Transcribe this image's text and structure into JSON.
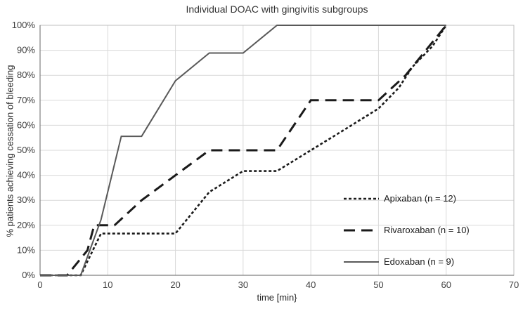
{
  "chart_data": {
    "type": "line",
    "title": "Individual DOAC with gingivitis subgroups",
    "xlabel": "time [min}",
    "ylabel": "% patients achieving cessation of bleeding",
    "xlim": [
      0,
      70
    ],
    "ylim": [
      0,
      100
    ],
    "xticks": [
      0,
      10,
      20,
      30,
      40,
      50,
      60,
      70
    ],
    "ytick_labels": [
      "0%",
      "10%",
      "20%",
      "30%",
      "40%",
      "50%",
      "60%",
      "70%",
      "80%",
      "90%",
      "100%"
    ],
    "grid": true,
    "legend_position": "inside-bottom-right",
    "series": [
      {
        "name": "Apixaban (n = 12)",
        "style": "dotted",
        "color": "#1a1a1a",
        "points": [
          [
            0,
            0
          ],
          [
            6,
            0
          ],
          [
            9,
            16.7
          ],
          [
            20,
            16.7
          ],
          [
            25,
            33.3
          ],
          [
            30,
            41.7
          ],
          [
            35,
            41.7
          ],
          [
            40,
            50
          ],
          [
            45,
            58.3
          ],
          [
            50,
            66.7
          ],
          [
            53,
            75
          ],
          [
            55,
            83.3
          ],
          [
            58,
            91.7
          ],
          [
            60,
            100
          ]
        ]
      },
      {
        "name": "Rivaroxaban (n = 10)",
        "style": "dashed",
        "color": "#1a1a1a",
        "points": [
          [
            0,
            0
          ],
          [
            4,
            0
          ],
          [
            7,
            10
          ],
          [
            8,
            20
          ],
          [
            11,
            20
          ],
          [
            15,
            30
          ],
          [
            20,
            40
          ],
          [
            25,
            50
          ],
          [
            35,
            50
          ],
          [
            40,
            70
          ],
          [
            50,
            70
          ],
          [
            54,
            80
          ],
          [
            60,
            100
          ]
        ]
      },
      {
        "name": "Edoxaban (n = 9)",
        "style": "solid",
        "color": "#595959",
        "points": [
          [
            0,
            0
          ],
          [
            6,
            0
          ],
          [
            9,
            22.2
          ],
          [
            12,
            55.6
          ],
          [
            15,
            55.6
          ],
          [
            20,
            77.8
          ],
          [
            25,
            88.9
          ],
          [
            30,
            88.9
          ],
          [
            35,
            100
          ],
          [
            60,
            100
          ]
        ]
      }
    ]
  }
}
